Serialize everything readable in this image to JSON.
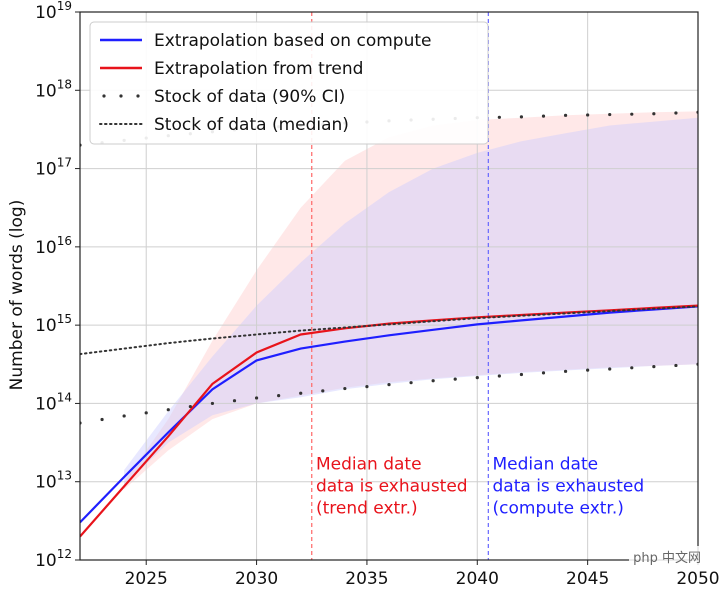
{
  "chart_data": {
    "type": "line",
    "title": "",
    "xlabel": "",
    "ylabel": "Number of words (log)",
    "xlim": [
      2022,
      2050
    ],
    "ylim_log10": [
      12,
      19
    ],
    "yscale": "log",
    "grid": true,
    "legend_position": "top-left",
    "x_ticks": [
      2025,
      2030,
      2035,
      2040,
      2045,
      2050
    ],
    "y_ticks_exp": [
      12,
      13,
      14,
      15,
      16,
      17,
      18,
      19
    ],
    "series": [
      {
        "name": "Extrapolation based on compute",
        "color": "#1f1fff",
        "style": "solid",
        "x": [
          2022,
          2024,
          2026,
          2028,
          2030,
          2032,
          2034,
          2036,
          2038,
          2040,
          2042,
          2044,
          2046,
          2048,
          2050
        ],
        "log10_y": [
          12.48,
          13.06,
          13.63,
          14.18,
          14.55,
          14.7,
          14.79,
          14.87,
          14.94,
          15.01,
          15.06,
          15.11,
          15.16,
          15.2,
          15.24
        ]
      },
      {
        "name": "Extrapolation from trend",
        "color": "#e8131b",
        "style": "solid",
        "x": [
          2022,
          2024,
          2026,
          2028,
          2030,
          2032,
          2034,
          2036,
          2038,
          2040,
          2042,
          2044,
          2046,
          2048,
          2050
        ],
        "log10_y": [
          12.3,
          12.94,
          13.58,
          14.25,
          14.65,
          14.88,
          14.96,
          15.02,
          15.06,
          15.1,
          15.13,
          15.16,
          15.19,
          15.22,
          15.25
        ]
      },
      {
        "name": "Stock of data (90% CI)",
        "color": "#333333",
        "style": "dots",
        "x": [
          2022,
          2024,
          2026,
          2028,
          2030,
          2032,
          2034,
          2036,
          2038,
          2040,
          2042,
          2044,
          2046,
          2048,
          2050
        ],
        "log10_y_upper": [
          17.3,
          17.36,
          17.42,
          17.47,
          17.52,
          17.55,
          17.58,
          17.61,
          17.63,
          17.65,
          17.66,
          17.68,
          17.69,
          17.7,
          17.72
        ],
        "log10_y_lower": [
          13.75,
          13.84,
          13.92,
          14.0,
          14.07,
          14.13,
          14.19,
          14.24,
          14.29,
          14.33,
          14.37,
          14.41,
          14.44,
          14.47,
          14.5
        ]
      },
      {
        "name": "Stock of data (median)",
        "color": "#333333",
        "style": "dotted",
        "x": [
          2022,
          2024,
          2026,
          2028,
          2030,
          2032,
          2034,
          2036,
          2038,
          2040,
          2042,
          2044,
          2046,
          2048,
          2050
        ],
        "log10_y": [
          14.63,
          14.7,
          14.77,
          14.83,
          14.88,
          14.93,
          14.97,
          15.01,
          15.05,
          15.09,
          15.12,
          15.15,
          15.18,
          15.21,
          15.24
        ]
      }
    ],
    "bands": [
      {
        "name": "trend CI",
        "color": "#ffcccc",
        "x": [
          2024,
          2026,
          2028,
          2030,
          2032,
          2034,
          2036,
          2038,
          2040,
          2042,
          2044,
          2046,
          2048,
          2050
        ],
        "log10_upper": [
          13.0,
          13.8,
          14.8,
          15.7,
          16.5,
          17.1,
          17.4,
          17.55,
          17.62,
          17.65,
          17.68,
          17.7,
          17.72,
          17.73
        ],
        "log10_lower": [
          12.9,
          13.4,
          13.8,
          14.0,
          14.1,
          14.2,
          14.27,
          14.32,
          14.36,
          14.4,
          14.43,
          14.46,
          14.48,
          14.5
        ]
      },
      {
        "name": "compute CI",
        "color": "#ccccff",
        "x": [
          2024,
          2026,
          2028,
          2030,
          2032,
          2034,
          2036,
          2038,
          2040,
          2042,
          2044,
          2046,
          2048,
          2050
        ],
        "log10_upper": [
          13.15,
          13.9,
          14.6,
          15.25,
          15.8,
          16.3,
          16.7,
          17.0,
          17.2,
          17.35,
          17.45,
          17.55,
          17.6,
          17.65
        ],
        "log10_lower": [
          12.95,
          13.5,
          13.85,
          14.0,
          14.08,
          14.18,
          14.25,
          14.31,
          14.35,
          14.39,
          14.42,
          14.45,
          14.48,
          14.5
        ]
      }
    ],
    "vlines": [
      {
        "x": 2032.5,
        "color": "#ff6666"
      },
      {
        "x": 2040.5,
        "color": "#6666ff"
      }
    ],
    "annotations": [
      {
        "lines": [
          "Median date",
          "data is exhausted",
          "(trend extr.)"
        ],
        "color": "#e8131b",
        "x": 2032.6,
        "log10_y": 12.75
      },
      {
        "lines": [
          "Median date",
          "data is exhausted",
          "(compute extr.)"
        ],
        "color": "#1f1fff",
        "x": 2040.6,
        "log10_y": 12.75
      }
    ]
  },
  "watermark_text": "php 中文网"
}
